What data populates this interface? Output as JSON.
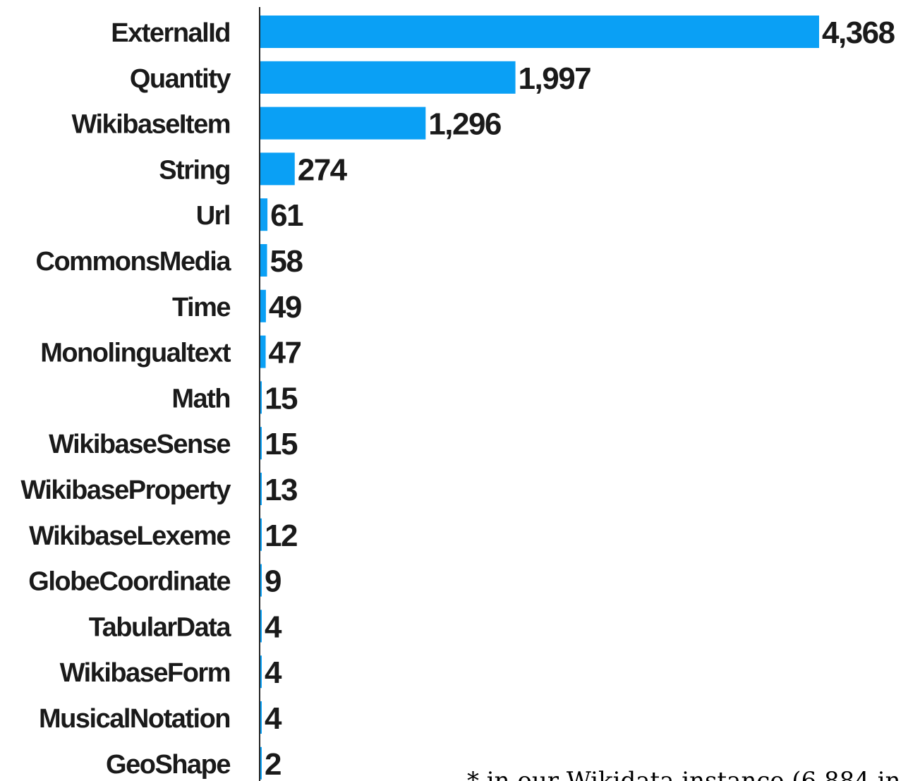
{
  "chart_data": {
    "type": "bar",
    "orientation": "horizontal",
    "categories": [
      "ExternalId",
      "Quantity",
      "WikibaseItem",
      "String",
      "Url",
      "CommonsMedia",
      "Time",
      "Monolingualtext",
      "Math",
      "WikibaseSense",
      "WikibaseProperty",
      "WikibaseLexeme",
      "GlobeCoordinate",
      "TabularData",
      "WikibaseForm",
      "MusicalNotation",
      "GeoShape"
    ],
    "values": [
      4368,
      1997,
      1296,
      274,
      61,
      58,
      49,
      47,
      15,
      15,
      13,
      12,
      9,
      4,
      4,
      4,
      2
    ],
    "value_labels": [
      "4,368",
      "1,997",
      "1,296",
      "274",
      "61",
      "58",
      "49",
      "47",
      "15",
      "15",
      "13",
      "12",
      "9",
      "4",
      "4",
      "4",
      "2"
    ],
    "title": "",
    "xlabel": "",
    "ylabel": "",
    "xlim": [
      0,
      4368
    ],
    "grid": false,
    "bar_color": "#0aa0f5",
    "axis_color": "#222222",
    "annotation": "* in our Wikidata instance (6,884 in"
  }
}
